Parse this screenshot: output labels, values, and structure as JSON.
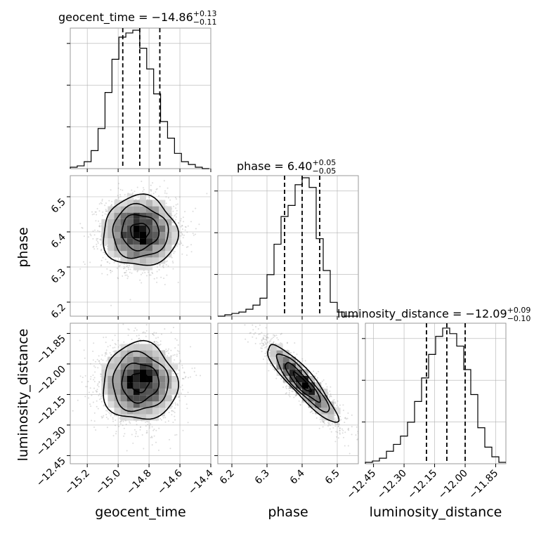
{
  "chart_data": {
    "type": "corner",
    "parameters": [
      "geocent_time",
      "phase",
      "luminosity_distance"
    ],
    "axis_labels": {
      "x": [
        "geocent_time",
        "phase",
        "luminosity_distance"
      ],
      "y": [
        "phase",
        "luminosity_distance"
      ]
    },
    "titles": [
      {
        "param": "geocent_time",
        "text": "geocent_time = −14.86",
        "plus": "+0.13",
        "minus": "−0.11"
      },
      {
        "param": "phase",
        "text": "phase = 6.40",
        "plus": "+0.05",
        "minus": "−0.05"
      },
      {
        "param": "luminosity_distance",
        "text": "luminosity_distance = −12.09",
        "plus": "+0.09",
        "minus": "−0.10"
      }
    ],
    "ranges": {
      "geocent_time": [
        -15.31,
        -14.4
      ],
      "phase": [
        6.16,
        6.56
      ],
      "luminosity_distance": [
        -12.49,
        -11.8
      ]
    },
    "ticks": {
      "geocent_time": [
        "−15.2",
        "−15.0",
        "−14.8",
        "−14.6",
        "−14.4"
      ],
      "phase": [
        "6.2",
        "6.3",
        "6.4",
        "6.5"
      ],
      "luminosity_distance": [
        "−12.45",
        "−12.30",
        "−12.15",
        "−12.00",
        "−11.85"
      ]
    },
    "tick_values": {
      "geocent_time": [
        -15.2,
        -15.0,
        -14.8,
        -14.6,
        -14.4
      ],
      "phase": [
        6.2,
        6.3,
        6.4,
        6.5
      ],
      "luminosity_distance": [
        -12.45,
        -12.3,
        -12.15,
        -12.0,
        -11.85
      ]
    },
    "quantiles": {
      "geocent_time": [
        -14.97,
        -14.86,
        -14.73
      ],
      "phase": [
        6.35,
        6.4,
        6.45
      ],
      "luminosity_distance": [
        -12.19,
        -12.09,
        -12.0
      ]
    },
    "histograms": {
      "geocent_time": {
        "bin_edges": [
          -15.31,
          -15.265,
          -15.22,
          -15.175,
          -15.13,
          -15.085,
          -15.04,
          -14.995,
          -14.95,
          -14.905,
          -14.86,
          -14.815,
          -14.77,
          -14.725,
          -14.68,
          -14.635,
          -14.59,
          -14.545,
          -14.5,
          -14.455,
          -14.41
        ],
        "counts": [
          0.01,
          0.02,
          0.05,
          0.13,
          0.29,
          0.55,
          0.79,
          0.95,
          0.98,
          1.0,
          0.87,
          0.72,
          0.54,
          0.34,
          0.22,
          0.11,
          0.05,
          0.03,
          0.01,
          0.0
        ]
      },
      "phase": {
        "bin_edges": [
          6.16,
          6.18,
          6.2,
          6.22,
          6.24,
          6.26,
          6.28,
          6.3,
          6.32,
          6.34,
          6.36,
          6.38,
          6.4,
          6.42,
          6.44,
          6.46,
          6.48,
          6.5,
          6.52,
          6.54,
          6.56
        ],
        "counts": [
          0.0,
          0.01,
          0.02,
          0.03,
          0.05,
          0.08,
          0.13,
          0.3,
          0.52,
          0.72,
          0.8,
          0.95,
          1.0,
          0.93,
          0.56,
          0.33,
          0.1,
          0.03,
          0.0,
          0.0
        ]
      },
      "luminosity_distance": {
        "bin_edges": [
          -12.49,
          -12.4555,
          -12.421,
          -12.3865,
          -12.352,
          -12.3175,
          -12.283,
          -12.2485,
          -12.214,
          -12.1795,
          -12.145,
          -12.1105,
          -12.076,
          -12.0415,
          -12.007,
          -11.9725,
          -11.938,
          -11.9035,
          -11.869,
          -11.8345,
          -11.8
        ],
        "counts": [
          0.01,
          0.02,
          0.04,
          0.09,
          0.14,
          0.2,
          0.3,
          0.45,
          0.62,
          0.79,
          0.92,
          0.98,
          0.94,
          0.85,
          0.68,
          0.5,
          0.26,
          0.12,
          0.05,
          0.01
        ]
      }
    },
    "posterior_mean": {
      "geocent_time": -14.86,
      "phase": 6.4,
      "luminosity_distance": -12.09
    },
    "posterior_std": {
      "geocent_time": 0.12,
      "phase": 0.05,
      "luminosity_distance": 0.095
    },
    "correlations": {
      "geocent_time|phase": 0.0,
      "geocent_time|luminosity_distance": 0.0,
      "phase|luminosity_distance": -0.9
    },
    "contour_levels_sigma": [
      0.5,
      1.0,
      1.5,
      2.0
    ],
    "grid": true,
    "colors": {
      "line": "#000000",
      "points": "#9a9a9a",
      "grid": "#b0b0b0",
      "frame": "#999999"
    }
  }
}
